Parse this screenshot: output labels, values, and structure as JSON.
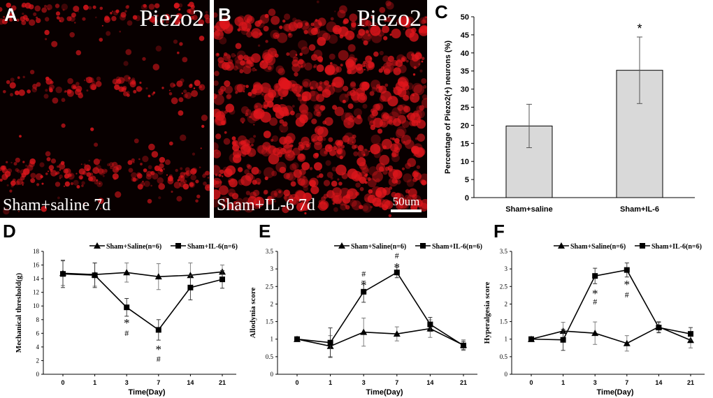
{
  "panels": {
    "A": {
      "label": "A",
      "title": "Piezo2",
      "caption": "Sham+saline 7d"
    },
    "B": {
      "label": "B",
      "title": "Piezo2",
      "caption": "Sham+IL-6 7d",
      "scale_bar": "50um"
    },
    "C": {
      "label": "C"
    },
    "D": {
      "label": "D"
    },
    "E": {
      "label": "E"
    },
    "F": {
      "label": "F"
    }
  },
  "colors": {
    "bar_fill": "#d9d9d9",
    "line": "#000000",
    "signal": "#e0161c",
    "background_dark": "#080000"
  },
  "chart_data": [
    {
      "id": "C",
      "type": "bar",
      "categories": [
        "Sham+saline",
        "Sham+IL-6"
      ],
      "values": [
        19.8,
        35.2
      ],
      "errors": [
        6.0,
        9.2
      ],
      "annotations": [
        "",
        "*"
      ],
      "ylabel": "Percentage of Piezo2(+) neurons (%)",
      "xlabel": "",
      "ylim": [
        0,
        50
      ],
      "yticks": [
        0,
        5,
        10,
        15,
        20,
        25,
        30,
        35,
        40,
        45,
        50
      ]
    },
    {
      "id": "D",
      "type": "line",
      "x": [
        "0",
        "1",
        "3",
        "7",
        "14",
        "21"
      ],
      "series": [
        {
          "name": "Sham+Saline(n=6)",
          "marker": "triangle",
          "values": [
            14.8,
            14.6,
            14.9,
            14.3,
            14.5,
            15.0
          ],
          "errors": [
            1.8,
            1.7,
            1.4,
            1.9,
            1.8,
            1.0
          ]
        },
        {
          "name": "Sham+IL-6(n=6)",
          "marker": "square",
          "values": [
            14.7,
            14.5,
            9.8,
            6.5,
            12.7,
            13.9
          ],
          "errors": [
            2.0,
            1.8,
            1.3,
            1.5,
            1.8,
            1.3
          ]
        }
      ],
      "annotations": [
        {
          "x": "3",
          "text": "*"
        },
        {
          "x": "3",
          "text": "#"
        },
        {
          "x": "7",
          "text": "*"
        },
        {
          "x": "7",
          "text": "#"
        }
      ],
      "ylabel": "Mechanical threshold(g)",
      "xlabel": "Time(Day)",
      "ylim": [
        0,
        18
      ],
      "yticks": [
        0,
        2,
        4,
        6,
        8,
        10,
        12,
        14,
        16,
        18
      ]
    },
    {
      "id": "E",
      "type": "line",
      "x": [
        "0",
        "1",
        "3",
        "7",
        "14",
        "21"
      ],
      "series": [
        {
          "name": "Sham+Saline(n=6)",
          "marker": "triangle",
          "values": [
            1.0,
            0.8,
            1.2,
            1.15,
            1.3,
            0.83
          ],
          "errors": [
            0.04,
            0.3,
            0.4,
            0.2,
            0.25,
            0.15
          ]
        },
        {
          "name": "Sham+IL-6(n=6)",
          "marker": "square",
          "values": [
            1.0,
            0.9,
            2.35,
            2.9,
            1.42,
            0.82
          ],
          "errors": [
            0.04,
            0.42,
            0.3,
            0.15,
            0.2,
            0.12
          ]
        }
      ],
      "annotations": [
        {
          "x": "3",
          "text": "#"
        },
        {
          "x": "3",
          "text": "*"
        },
        {
          "x": "7",
          "text": "#"
        },
        {
          "x": "7",
          "text": "*"
        }
      ],
      "ylabel": "Allodynia score",
      "xlabel": "Time(Day)",
      "ylim": [
        0,
        3.5
      ],
      "yticks": [
        0,
        0.5,
        1,
        1.5,
        2,
        2.5,
        3,
        3.5
      ]
    },
    {
      "id": "F",
      "type": "line",
      "x": [
        "0",
        "1",
        "3",
        "7",
        "14",
        "21"
      ],
      "series": [
        {
          "name": "Sham+Saline(n=6)",
          "marker": "triangle",
          "values": [
            1.0,
            1.23,
            1.17,
            0.88,
            1.35,
            0.97
          ],
          "errors": [
            0.04,
            0.25,
            0.32,
            0.22,
            0.15,
            0.22
          ]
        },
        {
          "name": "Sham+IL-6(n=6)",
          "marker": "square",
          "values": [
            1.0,
            0.98,
            2.8,
            2.97,
            1.33,
            1.15
          ],
          "errors": [
            0.04,
            0.3,
            0.22,
            0.2,
            0.15,
            0.18
          ]
        }
      ],
      "annotations": [
        {
          "x": "3",
          "text": "*"
        },
        {
          "x": "3",
          "text": "#"
        },
        {
          "x": "7",
          "text": "*"
        },
        {
          "x": "7",
          "text": "#"
        }
      ],
      "ylabel": "Hyperalgesia score",
      "xlabel": "Time(Day)",
      "ylim": [
        0,
        3.5
      ],
      "yticks": [
        0,
        0.5,
        1,
        1.5,
        2,
        2.5,
        3,
        3.5
      ]
    }
  ]
}
